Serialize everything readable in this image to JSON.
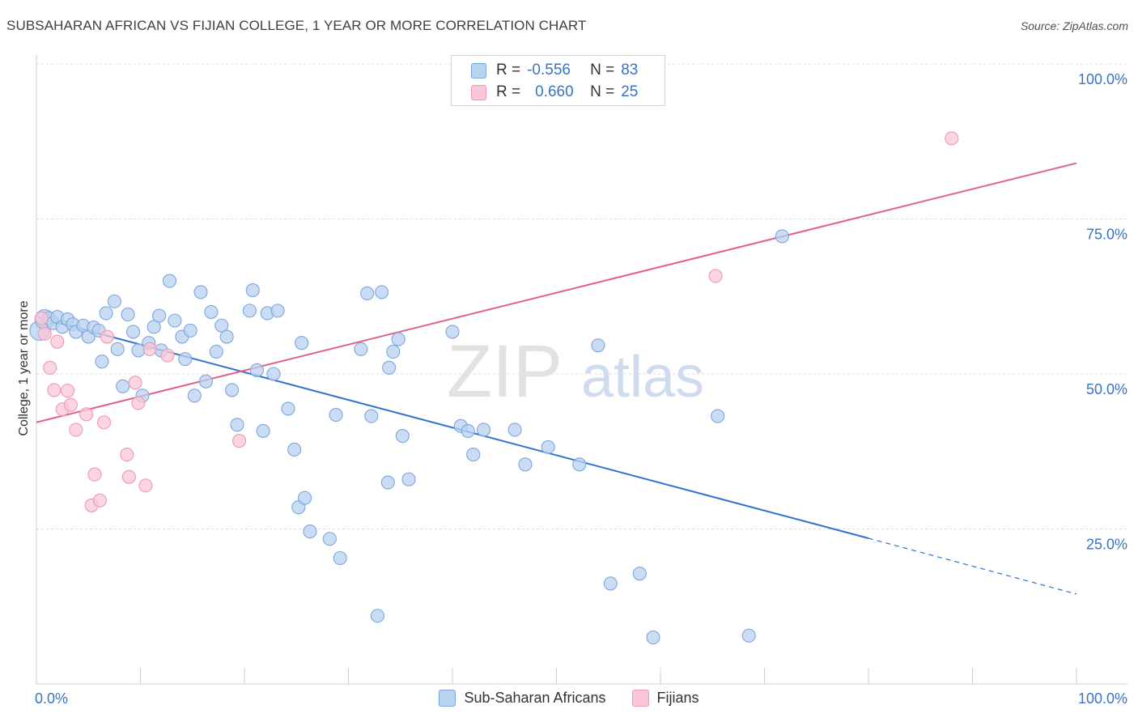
{
  "title": "SUBSAHARAN AFRICAN VS FIJIAN COLLEGE, 1 YEAR OR MORE CORRELATION CHART",
  "source": "Source: ZipAtlas.com",
  "watermark": {
    "zip": "ZIP",
    "atlas": "atlas"
  },
  "colors": {
    "blue": "#3a73c4",
    "blue_fill": "#b9d2f0",
    "blue_stroke": "#7ea6da",
    "blue_line": "#2f73d0",
    "pink": "#e0628b",
    "pink_fill": "#f9c7d6",
    "pink_stroke": "#ee99b4"
  },
  "stats_legend": [
    {
      "r_label": "R =",
      "r_value": "-0.556",
      "n_label": "N =",
      "n_value": "83"
    },
    {
      "r_label": "R =",
      "r_value": "0.660",
      "n_label": "N =",
      "n_value": "25"
    }
  ],
  "bottom_legend": [
    {
      "label": "Sub-Saharan Africans"
    },
    {
      "label": "Fijians"
    }
  ],
  "chart_data": {
    "type": "scatter",
    "title": "SUBSAHARAN AFRICAN VS FIJIAN COLLEGE, 1 YEAR OR MORE CORRELATION CHART",
    "xlabel": "",
    "ylabel": "College, 1 year or more",
    "xlim": [
      0,
      100
    ],
    "ylim": [
      0,
      100
    ],
    "x_tick_labels": [
      "0.0%",
      "100.0%"
    ],
    "y_tick_labels": [
      {
        "value": 100,
        "label": "100.0%"
      },
      {
        "value": 75,
        "label": "75.0%"
      },
      {
        "value": 50,
        "label": "50.0%"
      },
      {
        "value": 25,
        "label": "25.0%"
      }
    ],
    "series": [
      {
        "name": "Sub-Saharan Africans",
        "color": "#3a73c4",
        "r": -0.556,
        "n": 83,
        "trend": {
          "x0": 0,
          "y0": 59.2,
          "x1": 80,
          "y1": 23.5,
          "dashed_to_x": 100,
          "dashed_to_y": 14.5
        },
        "points": [
          [
            0.3,
            57
          ],
          [
            0.8,
            58.8
          ],
          [
            1.2,
            59
          ],
          [
            1.6,
            58.2
          ],
          [
            2,
            59.2
          ],
          [
            2.5,
            57.6
          ],
          [
            3,
            58.8
          ],
          [
            3.5,
            58
          ],
          [
            3.8,
            56.8
          ],
          [
            4.5,
            57.8
          ],
          [
            5,
            56
          ],
          [
            5.5,
            57.5
          ],
          [
            6,
            57
          ],
          [
            6.3,
            52
          ],
          [
            6.7,
            59.8
          ],
          [
            7.5,
            61.7
          ],
          [
            7.8,
            54
          ],
          [
            8.3,
            48
          ],
          [
            8.8,
            59.6
          ],
          [
            9.3,
            56.8
          ],
          [
            9.8,
            53.8
          ],
          [
            10.2,
            46.5
          ],
          [
            10.8,
            55
          ],
          [
            11.3,
            57.6
          ],
          [
            11.8,
            59.4
          ],
          [
            12,
            53.8
          ],
          [
            12.8,
            65
          ],
          [
            13.3,
            58.6
          ],
          [
            14,
            56
          ],
          [
            14.3,
            52.4
          ],
          [
            14.8,
            57
          ],
          [
            15.2,
            46.5
          ],
          [
            15.8,
            63.2
          ],
          [
            16.3,
            48.8
          ],
          [
            16.8,
            60
          ],
          [
            17.3,
            53.6
          ],
          [
            17.8,
            57.8
          ],
          [
            18.3,
            56
          ],
          [
            18.8,
            47.4
          ],
          [
            19.3,
            41.8
          ],
          [
            20.5,
            60.2
          ],
          [
            20.8,
            63.5
          ],
          [
            21.2,
            50.6
          ],
          [
            21.8,
            40.8
          ],
          [
            22.2,
            59.8
          ],
          [
            22.8,
            50
          ],
          [
            23.2,
            60.2
          ],
          [
            24.2,
            44.4
          ],
          [
            24.8,
            37.8
          ],
          [
            25.2,
            28.5
          ],
          [
            25.5,
            55
          ],
          [
            25.8,
            30
          ],
          [
            26.3,
            24.6
          ],
          [
            28.2,
            23.4
          ],
          [
            28.8,
            43.4
          ],
          [
            29.2,
            20.3
          ],
          [
            31.2,
            54
          ],
          [
            31.8,
            63
          ],
          [
            32.2,
            43.2
          ],
          [
            32.8,
            11
          ],
          [
            33.2,
            63.2
          ],
          [
            33.8,
            32.5
          ],
          [
            33.9,
            51
          ],
          [
            34.3,
            53.6
          ],
          [
            34.8,
            55.6
          ],
          [
            35.2,
            40
          ],
          [
            35.8,
            33
          ],
          [
            40,
            56.8
          ],
          [
            40.8,
            41.6
          ],
          [
            41.5,
            40.8
          ],
          [
            42,
            37
          ],
          [
            43,
            41
          ],
          [
            46,
            41
          ],
          [
            47,
            35.4
          ],
          [
            49.2,
            38.2
          ],
          [
            52.2,
            35.4
          ],
          [
            54,
            54.6
          ],
          [
            55.2,
            16.2
          ],
          [
            58,
            17.8
          ],
          [
            59.3,
            7.5
          ],
          [
            65.5,
            43.2
          ],
          [
            68.5,
            7.8
          ],
          [
            71.7,
            72.2
          ]
        ]
      },
      {
        "name": "Fijians",
        "color": "#e0628b",
        "r": 0.66,
        "n": 25,
        "trend": {
          "x0": 0,
          "y0": 42.2,
          "x1": 100,
          "y1": 84
        },
        "points": [
          [
            0.5,
            59
          ],
          [
            0.8,
            56.5
          ],
          [
            1.3,
            51
          ],
          [
            1.7,
            47.4
          ],
          [
            2,
            55.2
          ],
          [
            2.5,
            44.3
          ],
          [
            3,
            47.3
          ],
          [
            3.3,
            45
          ],
          [
            3.8,
            41
          ],
          [
            4.8,
            43.5
          ],
          [
            5.3,
            28.8
          ],
          [
            5.6,
            33.8
          ],
          [
            6.1,
            29.6
          ],
          [
            6.5,
            42.2
          ],
          [
            6.8,
            56
          ],
          [
            8.7,
            37
          ],
          [
            8.9,
            33.4
          ],
          [
            9.5,
            48.6
          ],
          [
            9.8,
            45.3
          ],
          [
            10.5,
            32
          ],
          [
            10.9,
            54
          ],
          [
            12.6,
            53
          ],
          [
            19.5,
            39.2
          ],
          [
            65.3,
            65.8
          ],
          [
            88,
            88
          ]
        ]
      }
    ]
  }
}
